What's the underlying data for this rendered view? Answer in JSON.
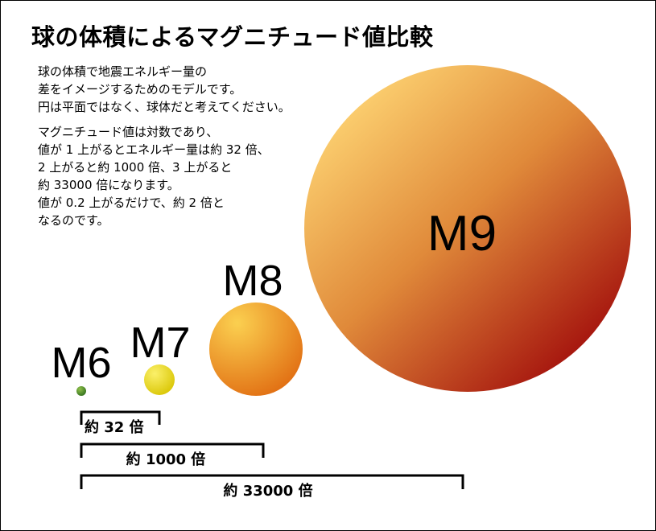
{
  "title": "球の体積によるマグニチュード値比較",
  "description": {
    "paragraph1": [
      "球の体積で地震エネルギー量の",
      "差をイメージするためのモデルです。",
      "円は平面ではなく、球体だと考えてください。"
    ],
    "paragraph2": [
      "マグニチュード値は対数であり、",
      "値が 1 上がるとエネルギー量は約 32 倍、",
      "2 上がると約 1000 倍、3 上がると",
      "約 33000 倍になります。",
      "値が 0.2 上がるだけで、約 2 倍と",
      "なるのです。"
    ]
  },
  "spheres": [
    {
      "label": "M6",
      "magnitude": 6,
      "color_light": "#8fc04a",
      "color_dark": "#2e6d1c"
    },
    {
      "label": "M7",
      "magnitude": 7,
      "color_light": "#fbf06a",
      "color_dark": "#d8c400"
    },
    {
      "label": "M8",
      "magnitude": 8,
      "color_light": "#fbd050",
      "color_dark": "#e06a10"
    },
    {
      "label": "M9",
      "magnitude": 9,
      "color_light": "#fcd070",
      "color_dark": "#a00a0a"
    }
  ],
  "brackets": [
    {
      "label": "約 32 倍",
      "from": "M6",
      "to": "M7"
    },
    {
      "label": "約 1000 倍",
      "from": "M6",
      "to": "M8"
    },
    {
      "label": "約 33000 倍",
      "from": "M6",
      "to": "M9"
    }
  ]
}
